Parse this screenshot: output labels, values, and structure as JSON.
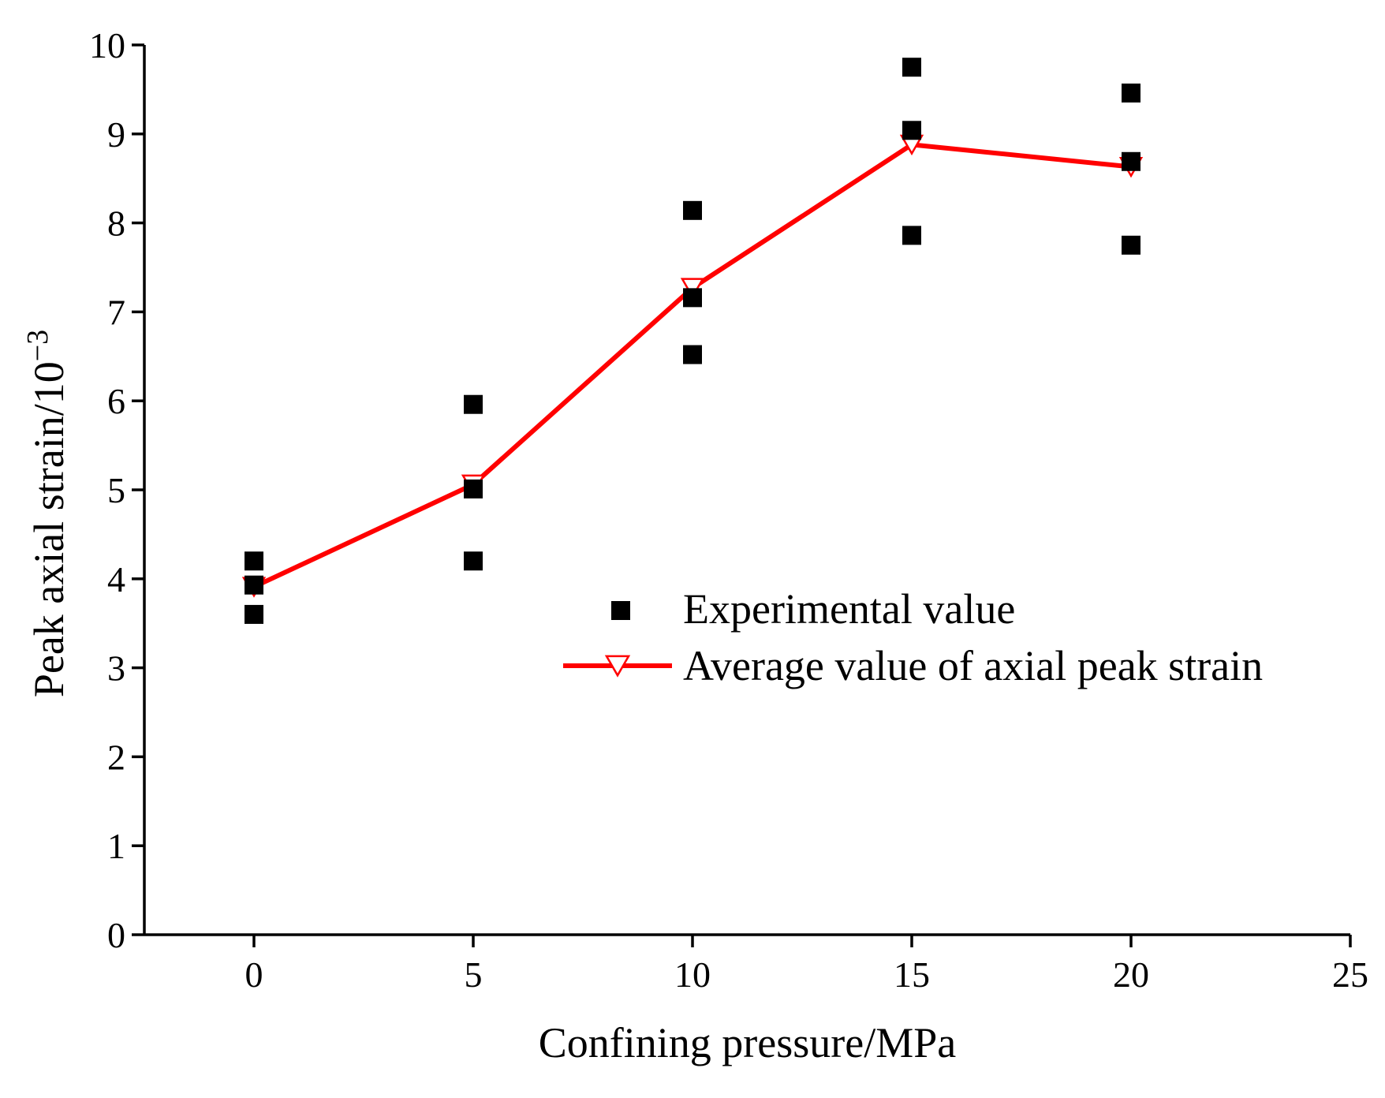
{
  "chart_data": {
    "type": "scatter",
    "title": "",
    "xlabel": "Confining pressure/MPa",
    "ylabel": "Peak axial strain/10",
    "ylabel_superscript": "−3",
    "xlim": [
      -2.5,
      25
    ],
    "ylim": [
      0,
      10
    ],
    "xticks": [
      0,
      5,
      10,
      15,
      20,
      25
    ],
    "xtick_labels": [
      "0",
      "5",
      "10",
      "15",
      "20",
      "25"
    ],
    "yticks": [
      0,
      1,
      2,
      3,
      4,
      5,
      6,
      7,
      8,
      9,
      10
    ],
    "ytick_labels": [
      "0",
      "1",
      "2",
      "3",
      "4",
      "5",
      "6",
      "7",
      "8",
      "9",
      "10"
    ],
    "grid": false,
    "legend_position": "right",
    "series": [
      {
        "name": "Experimental value",
        "kind": "scatter",
        "marker": "filled-square",
        "color": "#000000",
        "points": [
          {
            "x": 0,
            "y": 4.2
          },
          {
            "x": 0,
            "y": 3.93
          },
          {
            "x": 0,
            "y": 3.6
          },
          {
            "x": 5,
            "y": 5.96
          },
          {
            "x": 5,
            "y": 5.01
          },
          {
            "x": 5,
            "y": 4.2
          },
          {
            "x": 10,
            "y": 8.14
          },
          {
            "x": 10,
            "y": 7.16
          },
          {
            "x": 10,
            "y": 6.52
          },
          {
            "x": 15,
            "y": 9.75
          },
          {
            "x": 15,
            "y": 9.04
          },
          {
            "x": 15,
            "y": 7.86
          },
          {
            "x": 20,
            "y": 9.46
          },
          {
            "x": 20,
            "y": 8.69
          },
          {
            "x": 20,
            "y": 7.75
          }
        ]
      },
      {
        "name": "Average value of axial peak strain",
        "kind": "line",
        "marker": "open-down-triangle",
        "color": "#ff0000",
        "points": [
          {
            "x": 0,
            "y": 3.91
          },
          {
            "x": 5,
            "y": 5.06
          },
          {
            "x": 10,
            "y": 7.27
          },
          {
            "x": 15,
            "y": 8.88
          },
          {
            "x": 20,
            "y": 8.63
          }
        ]
      }
    ]
  }
}
